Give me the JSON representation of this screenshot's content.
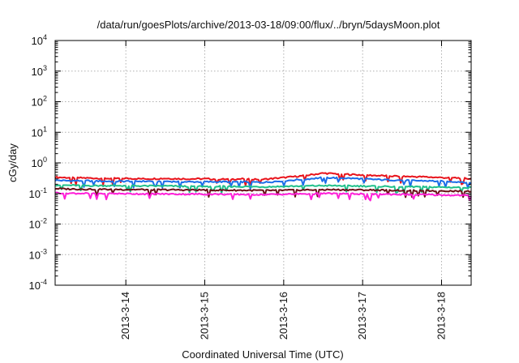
{
  "chart_data": {
    "type": "line",
    "title": "/data/run/goesPlots/archive/2013-03-18/09:00/flux/../bryn/5daysMoon.plot",
    "xlabel": "Coordinated Universal Time (UTC)",
    "ylabel": "cGy/day",
    "yscale": "log",
    "ylim": [
      0.0001,
      10000
    ],
    "xlim": [
      "2013-03-13T02:30",
      "2013-03-18T09:00"
    ],
    "y_ticks": [
      {
        "base": "10",
        "exp": "-4",
        "value": 0.0001
      },
      {
        "base": "10",
        "exp": "-3",
        "value": 0.001
      },
      {
        "base": "10",
        "exp": "-2",
        "value": 0.01
      },
      {
        "base": "10",
        "exp": "-1",
        "value": 0.1
      },
      {
        "base": "10",
        "exp": "0",
        "value": 1
      },
      {
        "base": "10",
        "exp": "1",
        "value": 10
      },
      {
        "base": "10",
        "exp": "2",
        "value": 100
      },
      {
        "base": "10",
        "exp": "3",
        "value": 1000
      },
      {
        "base": "10",
        "exp": "4",
        "value": 10000
      }
    ],
    "x_ticks": [
      {
        "label": "2013-3-14",
        "value": "2013-03-14T00:00"
      },
      {
        "label": "2013-3-15",
        "value": "2013-03-15T00:00"
      },
      {
        "label": "2013-3-16",
        "value": "2013-03-16T00:00"
      },
      {
        "label": "2013-3-17",
        "value": "2013-03-17T00:00"
      },
      {
        "label": "2013-3-18",
        "value": "2013-03-18T00:00"
      }
    ],
    "grid": true,
    "x": [
      "2013-03-13T02:30",
      "2013-03-13T06:00",
      "2013-03-13T12:00",
      "2013-03-13T18:00",
      "2013-03-14T00:00",
      "2013-03-14T06:00",
      "2013-03-14T12:00",
      "2013-03-14T18:00",
      "2013-03-15T00:00",
      "2013-03-15T06:00",
      "2013-03-15T12:00",
      "2013-03-15T18:00",
      "2013-03-16T00:00",
      "2013-03-16T06:00",
      "2013-03-16T12:00",
      "2013-03-16T18:00",
      "2013-03-17T00:00",
      "2013-03-17T06:00",
      "2013-03-17T12:00",
      "2013-03-17T18:00",
      "2013-03-18T00:00",
      "2013-03-18T06:00",
      "2013-03-18T09:00"
    ],
    "series": [
      {
        "color": "#e8141c",
        "values": [
          0.34,
          0.33,
          0.32,
          0.31,
          0.31,
          0.3,
          0.31,
          0.3,
          0.3,
          0.29,
          0.3,
          0.29,
          0.33,
          0.38,
          0.46,
          0.43,
          0.4,
          0.38,
          0.36,
          0.35,
          0.33,
          0.32,
          0.3
        ]
      },
      {
        "color": "#1c6ee8",
        "values": [
          0.27,
          0.26,
          0.26,
          0.25,
          0.25,
          0.25,
          0.25,
          0.24,
          0.24,
          0.24,
          0.24,
          0.23,
          0.26,
          0.29,
          0.33,
          0.32,
          0.3,
          0.28,
          0.27,
          0.26,
          0.25,
          0.24,
          0.22
        ]
      },
      {
        "color": "#1fc08a",
        "values": [
          0.19,
          0.185,
          0.18,
          0.18,
          0.18,
          0.175,
          0.175,
          0.17,
          0.17,
          0.17,
          0.168,
          0.165,
          0.17,
          0.175,
          0.18,
          0.178,
          0.175,
          0.17,
          0.168,
          0.165,
          0.16,
          0.158,
          0.155
        ]
      },
      {
        "color": "#6a1018",
        "values": [
          0.145,
          0.14,
          0.138,
          0.136,
          0.135,
          0.133,
          0.132,
          0.13,
          0.13,
          0.128,
          0.127,
          0.125,
          0.127,
          0.13,
          0.133,
          0.132,
          0.13,
          0.128,
          0.126,
          0.124,
          0.122,
          0.12,
          0.118
        ]
      },
      {
        "color": "#ff1fd8",
        "values": [
          0.105,
          0.102,
          0.1,
          0.099,
          0.098,
          0.097,
          0.096,
          0.095,
          0.095,
          0.094,
          0.093,
          0.092,
          0.094,
          0.097,
          0.1,
          0.099,
          0.097,
          0.095,
          0.093,
          0.091,
          0.089,
          0.087,
          0.085
        ]
      }
    ]
  }
}
